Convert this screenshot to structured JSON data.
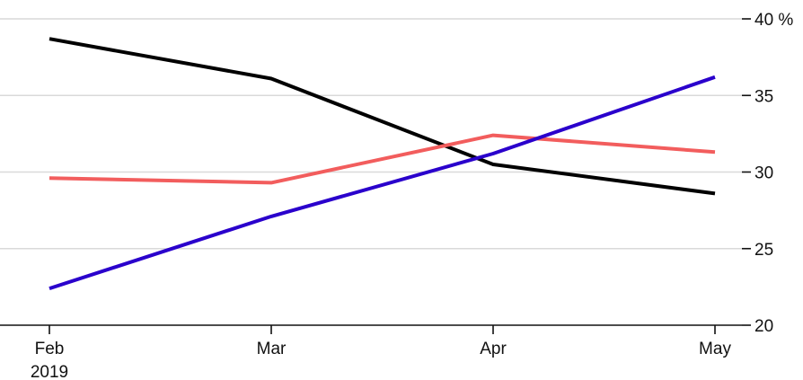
{
  "chart_data": {
    "type": "line",
    "title": "",
    "xlabel": "",
    "ylabel": "",
    "categories": [
      "Feb",
      "Mar",
      "Apr",
      "May"
    ],
    "category_sublabels": [
      "2019",
      "",
      "",
      ""
    ],
    "y_unit_suffix": " %",
    "yticks": [
      20,
      25,
      30,
      35,
      40
    ],
    "ylim": [
      20,
      40
    ],
    "grid": true,
    "y_axis_position": "right",
    "legend": "none",
    "series": [
      {
        "color": "#000000",
        "values": [
          38.7,
          36.1,
          30.5,
          28.6
        ]
      },
      {
        "color": "#f25d5d",
        "values": [
          29.6,
          29.3,
          32.4,
          31.3
        ]
      },
      {
        "color": "#2a00cc",
        "values": [
          22.4,
          27.1,
          31.2,
          36.2
        ]
      }
    ]
  }
}
